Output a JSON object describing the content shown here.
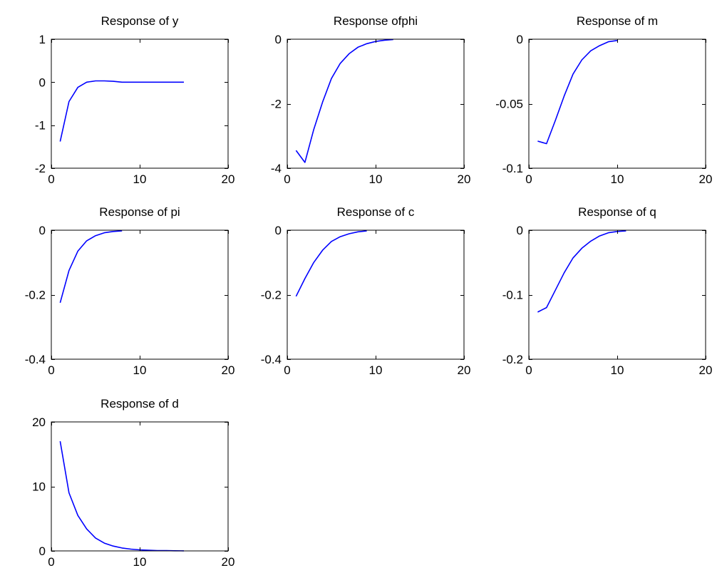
{
  "series_color": "#0000ff",
  "chart_data": [
    {
      "type": "line",
      "title": "Response of  y",
      "xlim": [
        0,
        20
      ],
      "ylim": [
        -2,
        1
      ],
      "xticks": [
        0,
        10,
        20
      ],
      "xtick_labels": [
        "0",
        "10",
        "20"
      ],
      "yticks": [
        1,
        0,
        -1,
        -2
      ],
      "ytick_labels": [
        "1",
        "0",
        "-1",
        "-2"
      ],
      "grid": false,
      "series": [
        {
          "x": [
            1,
            2,
            3,
            4,
            5,
            6,
            7,
            8,
            9,
            10,
            11,
            12,
            13,
            14,
            15
          ],
          "y": [
            -1.38,
            -0.45,
            -0.12,
            0.0,
            0.03,
            0.03,
            0.02,
            0.0,
            0.0,
            0.0,
            0.0,
            0.0,
            0.0,
            0.0,
            0.0
          ]
        }
      ]
    },
    {
      "type": "line",
      "title": "Response ofphi",
      "xlim": [
        0,
        20
      ],
      "ylim": [
        -4,
        0
      ],
      "xticks": [
        0,
        10,
        20
      ],
      "xtick_labels": [
        "0",
        "10",
        "20"
      ],
      "yticks": [
        0,
        -2,
        -4
      ],
      "ytick_labels": [
        "0",
        "-2",
        "-4"
      ],
      "grid": false,
      "series": [
        {
          "x": [
            1,
            2,
            3,
            4,
            5,
            6,
            7,
            8,
            9,
            10,
            11,
            12
          ],
          "y": [
            -3.45,
            -3.82,
            -2.8,
            -1.95,
            -1.22,
            -0.75,
            -0.45,
            -0.25,
            -0.14,
            -0.07,
            -0.03,
            -0.01
          ]
        }
      ]
    },
    {
      "type": "line",
      "title": "Response of  m",
      "xlim": [
        0,
        20
      ],
      "ylim": [
        -0.1,
        0
      ],
      "xticks": [
        0,
        10,
        20
      ],
      "xtick_labels": [
        "0",
        "10",
        "20"
      ],
      "yticks": [
        0,
        -0.05,
        -0.1
      ],
      "ytick_labels": [
        "0",
        "-0.05",
        "-0.1"
      ],
      "grid": false,
      "series": [
        {
          "x": [
            1,
            2,
            3,
            4,
            5,
            6,
            7,
            8,
            9,
            10
          ],
          "y": [
            -0.079,
            -0.081,
            -0.063,
            -0.044,
            -0.027,
            -0.016,
            -0.009,
            -0.005,
            -0.002,
            -0.001
          ]
        }
      ]
    },
    {
      "type": "line",
      "title": "Response of pi",
      "xlim": [
        0,
        20
      ],
      "ylim": [
        -0.4,
        0
      ],
      "xticks": [
        0,
        10,
        20
      ],
      "xtick_labels": [
        "0",
        "10",
        "20"
      ],
      "yticks": [
        0,
        -0.2,
        -0.4
      ],
      "ytick_labels": [
        "0",
        "-0.2",
        "-0.4"
      ],
      "grid": false,
      "series": [
        {
          "x": [
            1,
            2,
            3,
            4,
            5,
            6,
            7,
            8
          ],
          "y": [
            -0.225,
            -0.125,
            -0.065,
            -0.033,
            -0.017,
            -0.008,
            -0.004,
            -0.002
          ]
        }
      ]
    },
    {
      "type": "line",
      "title": "Response of  c",
      "xlim": [
        0,
        20
      ],
      "ylim": [
        -0.4,
        0
      ],
      "xticks": [
        0,
        10,
        20
      ],
      "xtick_labels": [
        "0",
        "10",
        "20"
      ],
      "yticks": [
        0,
        -0.2,
        -0.4
      ],
      "ytick_labels": [
        "0",
        "-0.2",
        "-0.4"
      ],
      "grid": false,
      "series": [
        {
          "x": [
            1,
            2,
            3,
            4,
            5,
            6,
            7,
            8,
            9
          ],
          "y": [
            -0.205,
            -0.15,
            -0.1,
            -0.062,
            -0.035,
            -0.02,
            -0.011,
            -0.005,
            -0.002
          ]
        }
      ]
    },
    {
      "type": "line",
      "title": "Response of  q",
      "xlim": [
        0,
        20
      ],
      "ylim": [
        -0.2,
        0
      ],
      "xticks": [
        0,
        10,
        20
      ],
      "xtick_labels": [
        "0",
        "10",
        "20"
      ],
      "yticks": [
        0,
        -0.1,
        -0.2
      ],
      "ytick_labels": [
        "0",
        "-0.1",
        "-0.2"
      ],
      "grid": false,
      "series": [
        {
          "x": [
            1,
            2,
            3,
            4,
            5,
            6,
            7,
            8,
            9,
            10,
            11
          ],
          "y": [
            -0.127,
            -0.12,
            -0.093,
            -0.066,
            -0.043,
            -0.028,
            -0.017,
            -0.009,
            -0.004,
            -0.002,
            -0.001
          ]
        }
      ]
    },
    {
      "type": "line",
      "title": "Response of  d",
      "xlim": [
        0,
        20
      ],
      "ylim": [
        0,
        20
      ],
      "xticks": [
        0,
        10,
        20
      ],
      "xtick_labels": [
        "0",
        "10",
        "20"
      ],
      "yticks": [
        20,
        10,
        0
      ],
      "ytick_labels": [
        "20",
        "10",
        "0"
      ],
      "grid": false,
      "series": [
        {
          "x": [
            1,
            2,
            3,
            4,
            5,
            6,
            7,
            8,
            9,
            10,
            11,
            12,
            13,
            14,
            15
          ],
          "y": [
            17.0,
            9.0,
            5.5,
            3.4,
            2.0,
            1.2,
            0.75,
            0.45,
            0.28,
            0.17,
            0.1,
            0.06,
            0.04,
            0.02,
            0.01
          ]
        }
      ]
    }
  ]
}
